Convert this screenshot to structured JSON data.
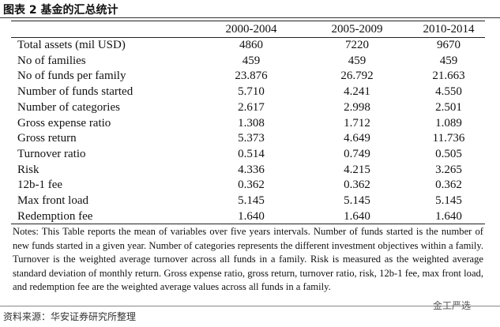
{
  "header": {
    "title": "图表 2 基金的汇总统计"
  },
  "table": {
    "columns": [
      "",
      "2000-2004",
      "2005-2009",
      "2010-2014"
    ],
    "rows": [
      [
        "Total assets (mil USD)",
        "4860",
        "7220",
        "9670"
      ],
      [
        "No of families",
        "459",
        "459",
        "459"
      ],
      [
        "No of funds per family",
        "23.876",
        "26.792",
        "21.663"
      ],
      [
        "Number of funds started",
        "5.710",
        "4.241",
        "4.550"
      ],
      [
        "Number of categories",
        "2.617",
        "2.998",
        "2.501"
      ],
      [
        "Gross expense ratio",
        "1.308",
        "1.712",
        "1.089"
      ],
      [
        "Gross return",
        "5.373",
        "4.649",
        "11.736"
      ],
      [
        "Turnover ratio",
        "0.514",
        "0.749",
        "0.505"
      ],
      [
        "Risk",
        "4.336",
        "4.215",
        "3.265"
      ],
      [
        "12b-1 fee",
        "0.362",
        "0.362",
        "0.362"
      ],
      [
        "Max front load",
        "5.145",
        "5.145",
        "5.145"
      ],
      [
        "Redemption fee",
        "1.640",
        "1.640",
        "1.640"
      ]
    ],
    "notes": "Notes: This Table reports the mean of variables over five years intervals. Number of funds started is the number of new funds started in a given year. Number of categories represents the different investment objectives within a family. Turnover is the weighted average turnover across all funds in a family. Risk is measured as the weighted average standard deviation of monthly return. Gross expense ratio, gross return, turnover ratio, risk, 12b-1 fee, max front load, and redemption fee are the weighted average values across all funds in a family."
  },
  "watermark": "金工严选",
  "footer": {
    "source": "资料来源：华安证券研究所整理"
  }
}
